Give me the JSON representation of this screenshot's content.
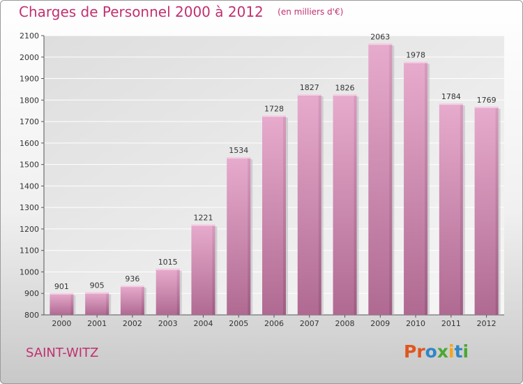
{
  "header": {
    "title": "Charges de Personnel 2000 à 2012",
    "unit": "(en milliers d'€)"
  },
  "footer": {
    "commune": "SAINT-WITZ",
    "brand_letters": [
      {
        "char": "P",
        "color": "#e0561e"
      },
      {
        "char": "r",
        "color": "#e0561e"
      },
      {
        "char": "o",
        "color": "#2f86c6"
      },
      {
        "char": "x",
        "color": "#4aa832"
      },
      {
        "char": "i",
        "color": "#f2a51c"
      },
      {
        "char": "t",
        "color": "#2f86c6"
      },
      {
        "char": "i",
        "color": "#4aa832"
      }
    ]
  },
  "chart_data": {
    "type": "bar",
    "categories": [
      "2000",
      "2001",
      "2002",
      "2003",
      "2004",
      "2005",
      "2006",
      "2007",
      "2008",
      "2009",
      "2010",
      "2011",
      "2012"
    ],
    "values": [
      901,
      905,
      936,
      1015,
      1221,
      1534,
      1728,
      1827,
      1826,
      2063,
      1978,
      1784,
      1769
    ],
    "yticks": [
      800,
      900,
      1000,
      1100,
      1200,
      1300,
      1400,
      1500,
      1600,
      1700,
      1800,
      1900,
      2000,
      2100
    ],
    "ylim": [
      800,
      2100
    ],
    "grid": true,
    "bar_color": "#d890b8",
    "title": "Charges de Personnel 2000 à 2012",
    "xlabel": "",
    "ylabel": ""
  }
}
